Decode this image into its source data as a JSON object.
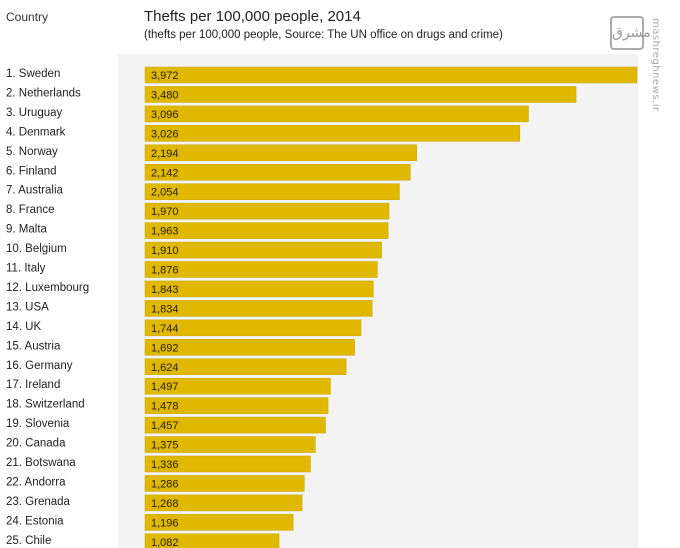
{
  "header": {
    "country_label": "Country",
    "title": "Thefts per 100,000 people, 2014",
    "subtitle": "(thefts per 100,000 people, Source: The UN office on drugs and crime)"
  },
  "watermark": {
    "logo": "مشرق",
    "text": "mashreghnews.ir"
  },
  "colors": {
    "bar": "#e0b800",
    "bar_edge": "#c9a500",
    "plot_bg": "#f3f3f3"
  },
  "chart_data": {
    "type": "bar",
    "orientation": "horizontal",
    "title": "Thefts per 100,000 people, 2014",
    "subtitle": "(thefts per 100,000 people, Source: The UN office on drugs and crime)",
    "category_header": "Country",
    "categories": [
      "1. Sweden",
      "2. Netherlands",
      "3. Uruguay",
      "4. Denmark",
      "5. Norway",
      "6. Finland",
      "7. Australia",
      "8. France",
      "9. Malta",
      "10. Belgium",
      "11. Italy",
      "12. Luxembourg",
      "13. USA",
      "14. UK",
      "15. Austria",
      "16. Germany",
      "17. Ireland",
      "18. Switzerland",
      "19. Slovenia",
      "20. Canada",
      "21. Botswana",
      "22. Andorra",
      "23. Grenada",
      "24. Estonia",
      "25. Chile"
    ],
    "values": [
      3972,
      3480,
      3096,
      3026,
      2194,
      2142,
      2054,
      1970,
      1963,
      1910,
      1876,
      1843,
      1834,
      1744,
      1692,
      1624,
      1497,
      1478,
      1457,
      1375,
      1336,
      1286,
      1268,
      1196,
      1082
    ],
    "value_labels": [
      "3,972",
      "3,480",
      "3,096",
      "3,026",
      "2,194",
      "2,142",
      "2,054",
      "1,970",
      "1,963",
      "1,910",
      "1,876",
      "1,843",
      "1,834",
      "1,744",
      "1,692",
      "1,624",
      "1,497",
      "1,478",
      "1,457",
      "1,375",
      "1,336",
      "1,286",
      "1,268",
      "1,196",
      "1,082"
    ],
    "xlim": [
      0,
      3972
    ],
    "grid": false,
    "legend": "none"
  }
}
